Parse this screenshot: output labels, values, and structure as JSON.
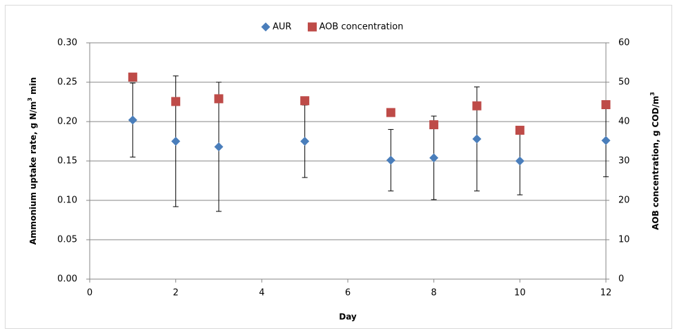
{
  "chart_data": {
    "type": "scatter",
    "x": [
      1,
      2,
      3,
      5,
      7,
      8,
      9,
      10,
      12
    ],
    "series": [
      {
        "name": "AUR",
        "color": "#4a7ebb",
        "marker": "diamond",
        "values": [
          0.202,
          0.175,
          0.168,
          0.175,
          0.151,
          0.154,
          0.178,
          0.15,
          0.176
        ],
        "errors": [
          0.047,
          0.083,
          0.082,
          0.046,
          0.039,
          0.053,
          0.066,
          0.043,
          0.046
        ]
      },
      {
        "name": "AOB concentration",
        "color": "#be4b48",
        "marker": "square",
        "axis": "y2",
        "values": [
          51.3,
          45.1,
          45.8,
          45.3,
          42.3,
          39.2,
          44.0,
          37.8,
          44.3
        ]
      }
    ],
    "xlabel": "Day",
    "ylabel": [
      "Ammonium uptake rate, g N/m",
      "3",
      " min"
    ],
    "y2label": [
      "AOB concentration, g  COD/m",
      "3"
    ],
    "xlim": [
      0,
      12
    ],
    "xticks": [
      0,
      2,
      4,
      6,
      8,
      10,
      12
    ],
    "ylim": [
      0,
      0.3
    ],
    "yticks": [
      {
        "value": 0,
        "label": "0.00"
      },
      {
        "value": 0.05,
        "label": "0.05"
      },
      {
        "value": 0.1,
        "label": "0.10"
      },
      {
        "value": 0.15,
        "label": "0.15"
      },
      {
        "value": 0.2,
        "label": "0.20"
      },
      {
        "value": 0.25,
        "label": "0.25"
      },
      {
        "value": 0.3,
        "label": "0.30"
      }
    ],
    "y2lim": [
      0,
      60
    ],
    "y2ticks": [
      0,
      10,
      20,
      30,
      40,
      50,
      60
    ],
    "grid": true,
    "legend": "top"
  }
}
